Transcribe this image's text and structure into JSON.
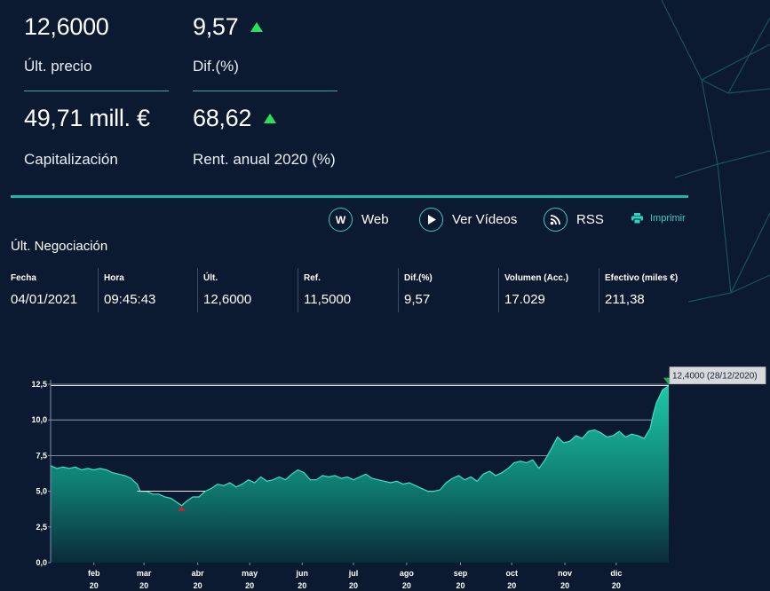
{
  "summary": {
    "last_price": "12,6000",
    "last_price_label": "Últ. precio",
    "diff_pct": "9,57",
    "diff_pct_label": "Dif.(%)",
    "market_cap": "49,71 mill. €",
    "market_cap_label": "Capitalización",
    "annual_return": "68,62",
    "annual_return_label": "Rent. anual 2020 (%)"
  },
  "links": {
    "web_label": "Web",
    "videos_label": "Ver Vídeos",
    "rss_label": "RSS",
    "print_label": "Imprimir",
    "web_icon_letter": "W"
  },
  "last_trade": {
    "title": "Últ. Negociación",
    "columns": [
      {
        "header": "Fecha",
        "value": "04/01/2021"
      },
      {
        "header": "Hora",
        "value": "09:45:43"
      },
      {
        "header": "Últ.",
        "value": "12,6000"
      },
      {
        "header": "Ref.",
        "value": "11,5000"
      },
      {
        "header": "Dif.(%)",
        "value": "9,57"
      },
      {
        "header": "Volumen (Acc.)",
        "value": "17.029"
      },
      {
        "header": "Efectivo (miles €)",
        "value": "211,38"
      }
    ]
  },
  "colors": {
    "background": "#0b1a31",
    "accent": "#19b9a6",
    "up": "#25e35a",
    "down": "#e01e1e"
  },
  "chart_data": {
    "type": "area",
    "ylim": [
      0,
      12.5
    ],
    "y_ticks": [
      "0,0",
      "2,5",
      "5,0",
      "7,5",
      "10,0",
      "12,5"
    ],
    "month_labels": [
      {
        "month": "feb",
        "year": "20",
        "pos": 0.07
      },
      {
        "month": "mar",
        "year": "20",
        "pos": 0.151
      },
      {
        "month": "abr",
        "year": "20",
        "pos": 0.238
      },
      {
        "month": "may",
        "year": "20",
        "pos": 0.322
      },
      {
        "month": "jun",
        "year": "20",
        "pos": 0.407
      },
      {
        "month": "jul",
        "year": "20",
        "pos": 0.49
      },
      {
        "month": "ago",
        "year": "20",
        "pos": 0.576
      },
      {
        "month": "sep",
        "year": "20",
        "pos": 0.663
      },
      {
        "month": "oct",
        "year": "20",
        "pos": 0.746
      },
      {
        "month": "nov",
        "year": "20",
        "pos": 0.832
      },
      {
        "month": "dic",
        "year": "20",
        "pos": 0.915
      }
    ],
    "series": [
      {
        "points": [
          [
            0.0,
            6.8
          ],
          [
            0.01,
            6.6
          ],
          [
            0.02,
            6.7
          ],
          [
            0.03,
            6.6
          ],
          [
            0.04,
            6.7
          ],
          [
            0.05,
            6.5
          ],
          [
            0.06,
            6.6
          ],
          [
            0.07,
            6.5
          ],
          [
            0.08,
            6.6
          ],
          [
            0.09,
            6.5
          ],
          [
            0.1,
            6.3
          ],
          [
            0.11,
            6.2
          ],
          [
            0.12,
            6.1
          ],
          [
            0.13,
            5.9
          ],
          [
            0.14,
            5.5
          ],
          [
            0.145,
            5.0
          ],
          [
            0.155,
            5.0
          ],
          [
            0.165,
            4.8
          ],
          [
            0.175,
            4.8
          ],
          [
            0.185,
            4.6
          ],
          [
            0.195,
            4.5
          ],
          [
            0.205,
            4.2
          ],
          [
            0.212,
            4.0
          ],
          [
            0.22,
            4.3
          ],
          [
            0.23,
            4.6
          ],
          [
            0.24,
            4.6
          ],
          [
            0.25,
            5.0
          ],
          [
            0.26,
            5.2
          ],
          [
            0.27,
            5.5
          ],
          [
            0.28,
            5.4
          ],
          [
            0.29,
            5.6
          ],
          [
            0.3,
            5.3
          ],
          [
            0.31,
            5.5
          ],
          [
            0.32,
            5.8
          ],
          [
            0.33,
            5.6
          ],
          [
            0.34,
            6.0
          ],
          [
            0.35,
            5.7
          ],
          [
            0.36,
            5.8
          ],
          [
            0.37,
            6.0
          ],
          [
            0.38,
            5.8
          ],
          [
            0.39,
            6.2
          ],
          [
            0.4,
            6.5
          ],
          [
            0.41,
            6.3
          ],
          [
            0.42,
            5.8
          ],
          [
            0.43,
            5.8
          ],
          [
            0.44,
            6.1
          ],
          [
            0.45,
            6.0
          ],
          [
            0.46,
            6.1
          ],
          [
            0.47,
            5.9
          ],
          [
            0.48,
            6.0
          ],
          [
            0.49,
            5.8
          ],
          [
            0.5,
            6.0
          ],
          [
            0.51,
            6.2
          ],
          [
            0.52,
            5.9
          ],
          [
            0.53,
            5.8
          ],
          [
            0.54,
            5.7
          ],
          [
            0.55,
            5.6
          ],
          [
            0.56,
            5.7
          ],
          [
            0.57,
            5.5
          ],
          [
            0.58,
            5.6
          ],
          [
            0.59,
            5.4
          ],
          [
            0.6,
            5.2
          ],
          [
            0.61,
            5.0
          ],
          [
            0.62,
            5.0
          ],
          [
            0.63,
            5.1
          ],
          [
            0.64,
            5.6
          ],
          [
            0.65,
            5.9
          ],
          [
            0.66,
            6.1
          ],
          [
            0.67,
            5.8
          ],
          [
            0.68,
            6.0
          ],
          [
            0.69,
            5.7
          ],
          [
            0.7,
            6.2
          ],
          [
            0.71,
            6.4
          ],
          [
            0.72,
            6.1
          ],
          [
            0.73,
            6.3
          ],
          [
            0.74,
            6.6
          ],
          [
            0.75,
            7.0
          ],
          [
            0.76,
            7.1
          ],
          [
            0.77,
            7.0
          ],
          [
            0.78,
            7.2
          ],
          [
            0.79,
            6.6
          ],
          [
            0.8,
            7.2
          ],
          [
            0.81,
            8.0
          ],
          [
            0.82,
            8.8
          ],
          [
            0.83,
            8.4
          ],
          [
            0.84,
            8.5
          ],
          [
            0.85,
            8.9
          ],
          [
            0.86,
            8.7
          ],
          [
            0.87,
            9.2
          ],
          [
            0.88,
            9.3
          ],
          [
            0.89,
            9.1
          ],
          [
            0.9,
            8.8
          ],
          [
            0.91,
            8.9
          ],
          [
            0.92,
            9.2
          ],
          [
            0.93,
            8.8
          ],
          [
            0.94,
            9.0
          ],
          [
            0.95,
            8.9
          ],
          [
            0.96,
            8.7
          ],
          [
            0.97,
            9.4
          ],
          [
            0.975,
            10.4
          ],
          [
            0.98,
            11.2
          ],
          [
            0.99,
            12.1
          ],
          [
            1.0,
            12.4
          ]
        ]
      }
    ],
    "reference_lines": [
      {
        "value": 12.4,
        "x_from": 0.0,
        "x_to": 1.0
      },
      {
        "value": 5.0,
        "x_from": 0.14,
        "x_to": 0.25
      }
    ],
    "max_marker": {
      "x": 1.0,
      "value": 12.4,
      "label": "12,4000 (28/12/2020)"
    },
    "min_marker": {
      "x": 0.212,
      "value": 4.0
    }
  }
}
